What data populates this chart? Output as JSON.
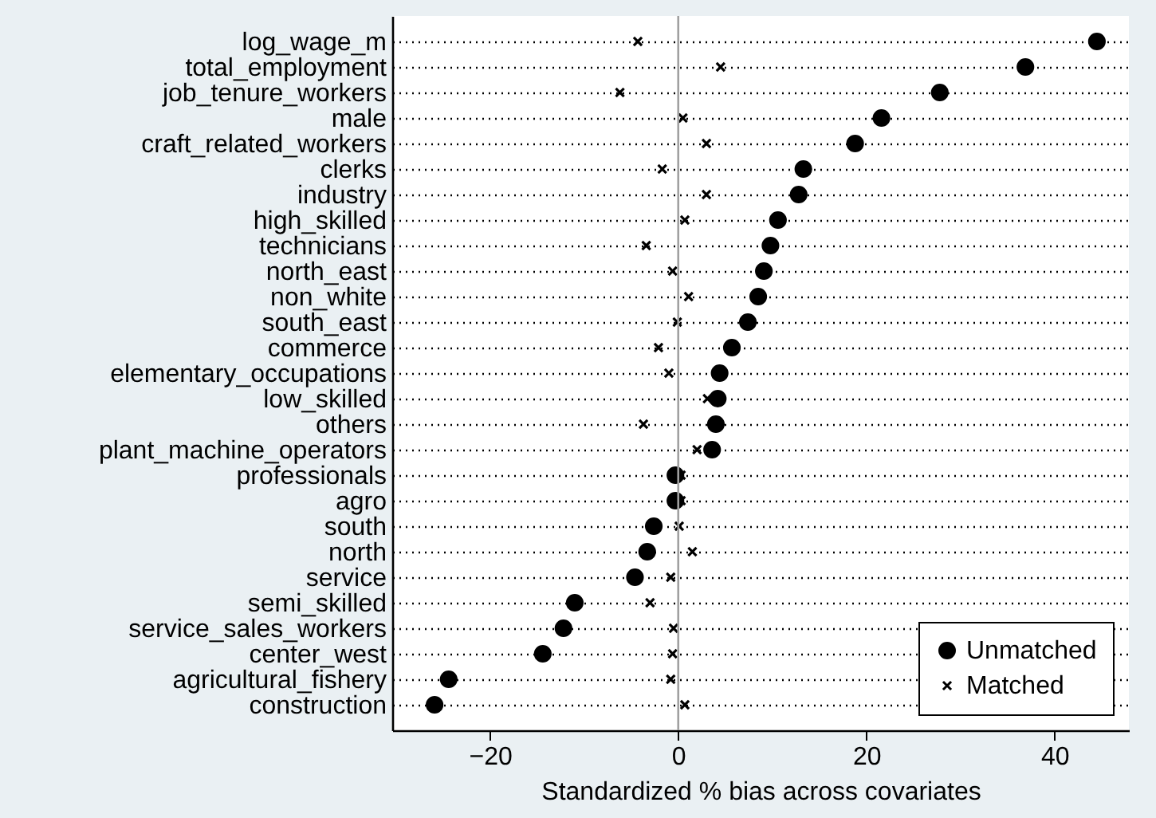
{
  "chart_data": {
    "type": "scatter",
    "orientation": "horizontal",
    "xlabel": "Standardized % bias across covariates",
    "categories": [
      "log_wage_m",
      "total_employment",
      "job_tenure_workers",
      "male",
      "craft_related_workers",
      "clerks",
      "industry",
      "high_skilled",
      "technicians",
      "north_east",
      "non_white",
      "south_east",
      "commerce",
      "elementary_occupations",
      "low_skilled",
      "others",
      "plant_machine_operators",
      "professionals",
      "agro",
      "south",
      "north",
      "service",
      "semi_skilled",
      "service_sales_workers",
      "center_west",
      "agricultural_fishery",
      "construction"
    ],
    "series": [
      {
        "name": "Unmatched",
        "color": "#000000",
        "marker": "circle",
        "values": [
          44.5,
          36.9,
          27.8,
          21.6,
          18.8,
          13.3,
          12.8,
          10.6,
          9.8,
          9.1,
          8.5,
          7.4,
          5.7,
          4.4,
          4.2,
          4.0,
          3.6,
          -0.3,
          -0.3,
          -2.6,
          -3.3,
          -4.6,
          -11.0,
          -12.2,
          -14.4,
          -24.4,
          -25.9
        ]
      },
      {
        "name": "Matched",
        "color": "#000000",
        "marker": "cross",
        "values": [
          -4.3,
          4.5,
          -6.2,
          0.5,
          3.0,
          -1.7,
          3.0,
          0.7,
          -3.4,
          -0.6,
          1.1,
          -0.1,
          -2.1,
          -1.0,
          3.1,
          -3.7,
          2.0,
          0.3,
          0.3,
          0.1,
          1.5,
          -0.8,
          -3.0,
          -0.5,
          -0.6,
          -0.8,
          0.7
        ]
      }
    ],
    "xlim": [
      -30.4,
      47.9
    ],
    "xticks": [
      -20,
      0,
      20,
      40
    ],
    "ref_lines": [
      {
        "axis": "x",
        "value": 0,
        "color": "#a0a0a0"
      }
    ],
    "grid": "y",
    "line_style": "dotted",
    "legend": "bottom right"
  }
}
